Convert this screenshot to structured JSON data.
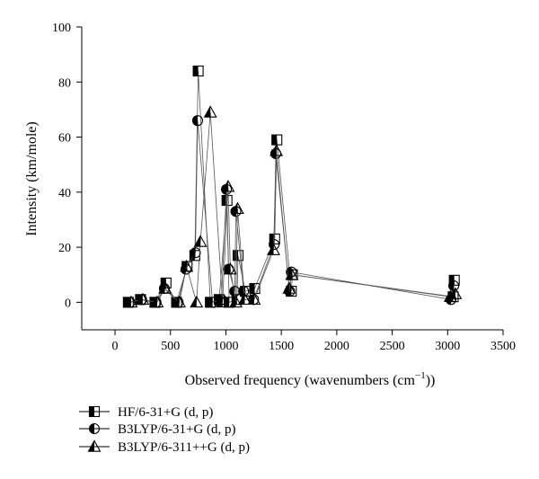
{
  "chart_data": {
    "type": "scatter",
    "xlabel": "Observed frequency (wavenumbers (cm",
    "xlabel_sup": "−1",
    "xlabel_end": "))",
    "ylabel": "Intensity (km/mole)",
    "xlim": [
      -300,
      3500
    ],
    "ylim": [
      -10,
      100
    ],
    "x_ticks": [
      0,
      500,
      1000,
      1500,
      2000,
      2500,
      3000,
      3500
    ],
    "y_ticks": [
      0,
      20,
      40,
      60,
      80,
      100
    ],
    "grid": false,
    "legend_position": "bottom-left",
    "series": [
      {
        "name": "HF/6-31+G (d, p)",
        "marker": "half-square",
        "x": [
          120,
          230,
          360,
          460,
          555,
          650,
          720,
          750,
          860,
          940,
          1010,
          1030,
          1100,
          1110,
          1175,
          1260,
          1440,
          1460,
          1590,
          1600,
          3050,
          3060
        ],
        "y": [
          0,
          1,
          0,
          7,
          0,
          13,
          17,
          84,
          0,
          1,
          37,
          0,
          1,
          17,
          4,
          5,
          23,
          59,
          4,
          10,
          2,
          8
        ]
      },
      {
        "name": "B3LYP/6-31+G (d, p)",
        "marker": "half-circle",
        "x": [
          135,
          240,
          370,
          445,
          570,
          640,
          725,
          745,
          880,
          960,
          1005,
          1025,
          1080,
          1090,
          1160,
          1250,
          1435,
          1450,
          1575,
          1590,
          3030,
          3055
        ],
        "y": [
          0,
          1,
          0,
          5,
          0,
          12,
          18,
          66,
          0,
          1,
          41,
          12,
          4,
          33,
          4,
          1,
          21,
          54,
          4,
          11,
          1,
          6
        ]
      },
      {
        "name": "B3LYP/6-311++G (d, p)",
        "marker": "half-triangle",
        "x": [
          145,
          250,
          380,
          450,
          580,
          645,
          735,
          770,
          860,
          970,
          1020,
          1040,
          1090,
          1105,
          1170,
          1255,
          1430,
          1455,
          1570,
          1595,
          3025,
          3070
        ],
        "y": [
          0,
          1,
          0,
          5,
          0,
          13,
          0,
          22,
          69,
          0,
          42,
          12,
          0,
          34,
          1,
          1,
          19,
          55,
          5,
          10,
          2,
          3
        ]
      }
    ]
  }
}
